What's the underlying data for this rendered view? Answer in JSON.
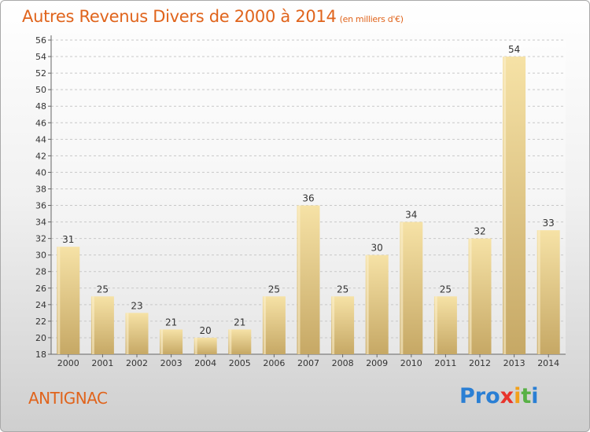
{
  "title": "Autres Revenus Divers de 2000 à 2014",
  "unit": "(en milliers d'€)",
  "commune": "ANTIGNAC",
  "logo": {
    "p1": "Pro",
    "x": "x",
    "i1": "i",
    "t": "t",
    "i2": "i"
  },
  "colors": {
    "title": "#e0641c",
    "bar_light": "#f6e2a6",
    "bar_dark": "#c6a865",
    "grid": "#c8c8c8",
    "axis": "#666666",
    "text": "#333333"
  },
  "chart_data": {
    "type": "bar",
    "title": "Autres Revenus Divers de 2000 à 2014",
    "subtitle": "(en milliers d'€)",
    "categories": [
      "2000",
      "2001",
      "2002",
      "2003",
      "2004",
      "2005",
      "2006",
      "2007",
      "2008",
      "2009",
      "2010",
      "2011",
      "2012",
      "2013",
      "2014"
    ],
    "values": [
      31,
      25,
      23,
      21,
      20,
      21,
      25,
      36,
      25,
      30,
      34,
      25,
      32,
      54,
      33
    ],
    "ylim": [
      18,
      56
    ],
    "yticks": [
      18,
      20,
      22,
      24,
      26,
      28,
      30,
      32,
      34,
      36,
      38,
      40,
      42,
      44,
      46,
      48,
      50,
      52,
      54,
      56
    ],
    "grid": true,
    "data_labels": true,
    "xlabel": "",
    "ylabel": ""
  }
}
